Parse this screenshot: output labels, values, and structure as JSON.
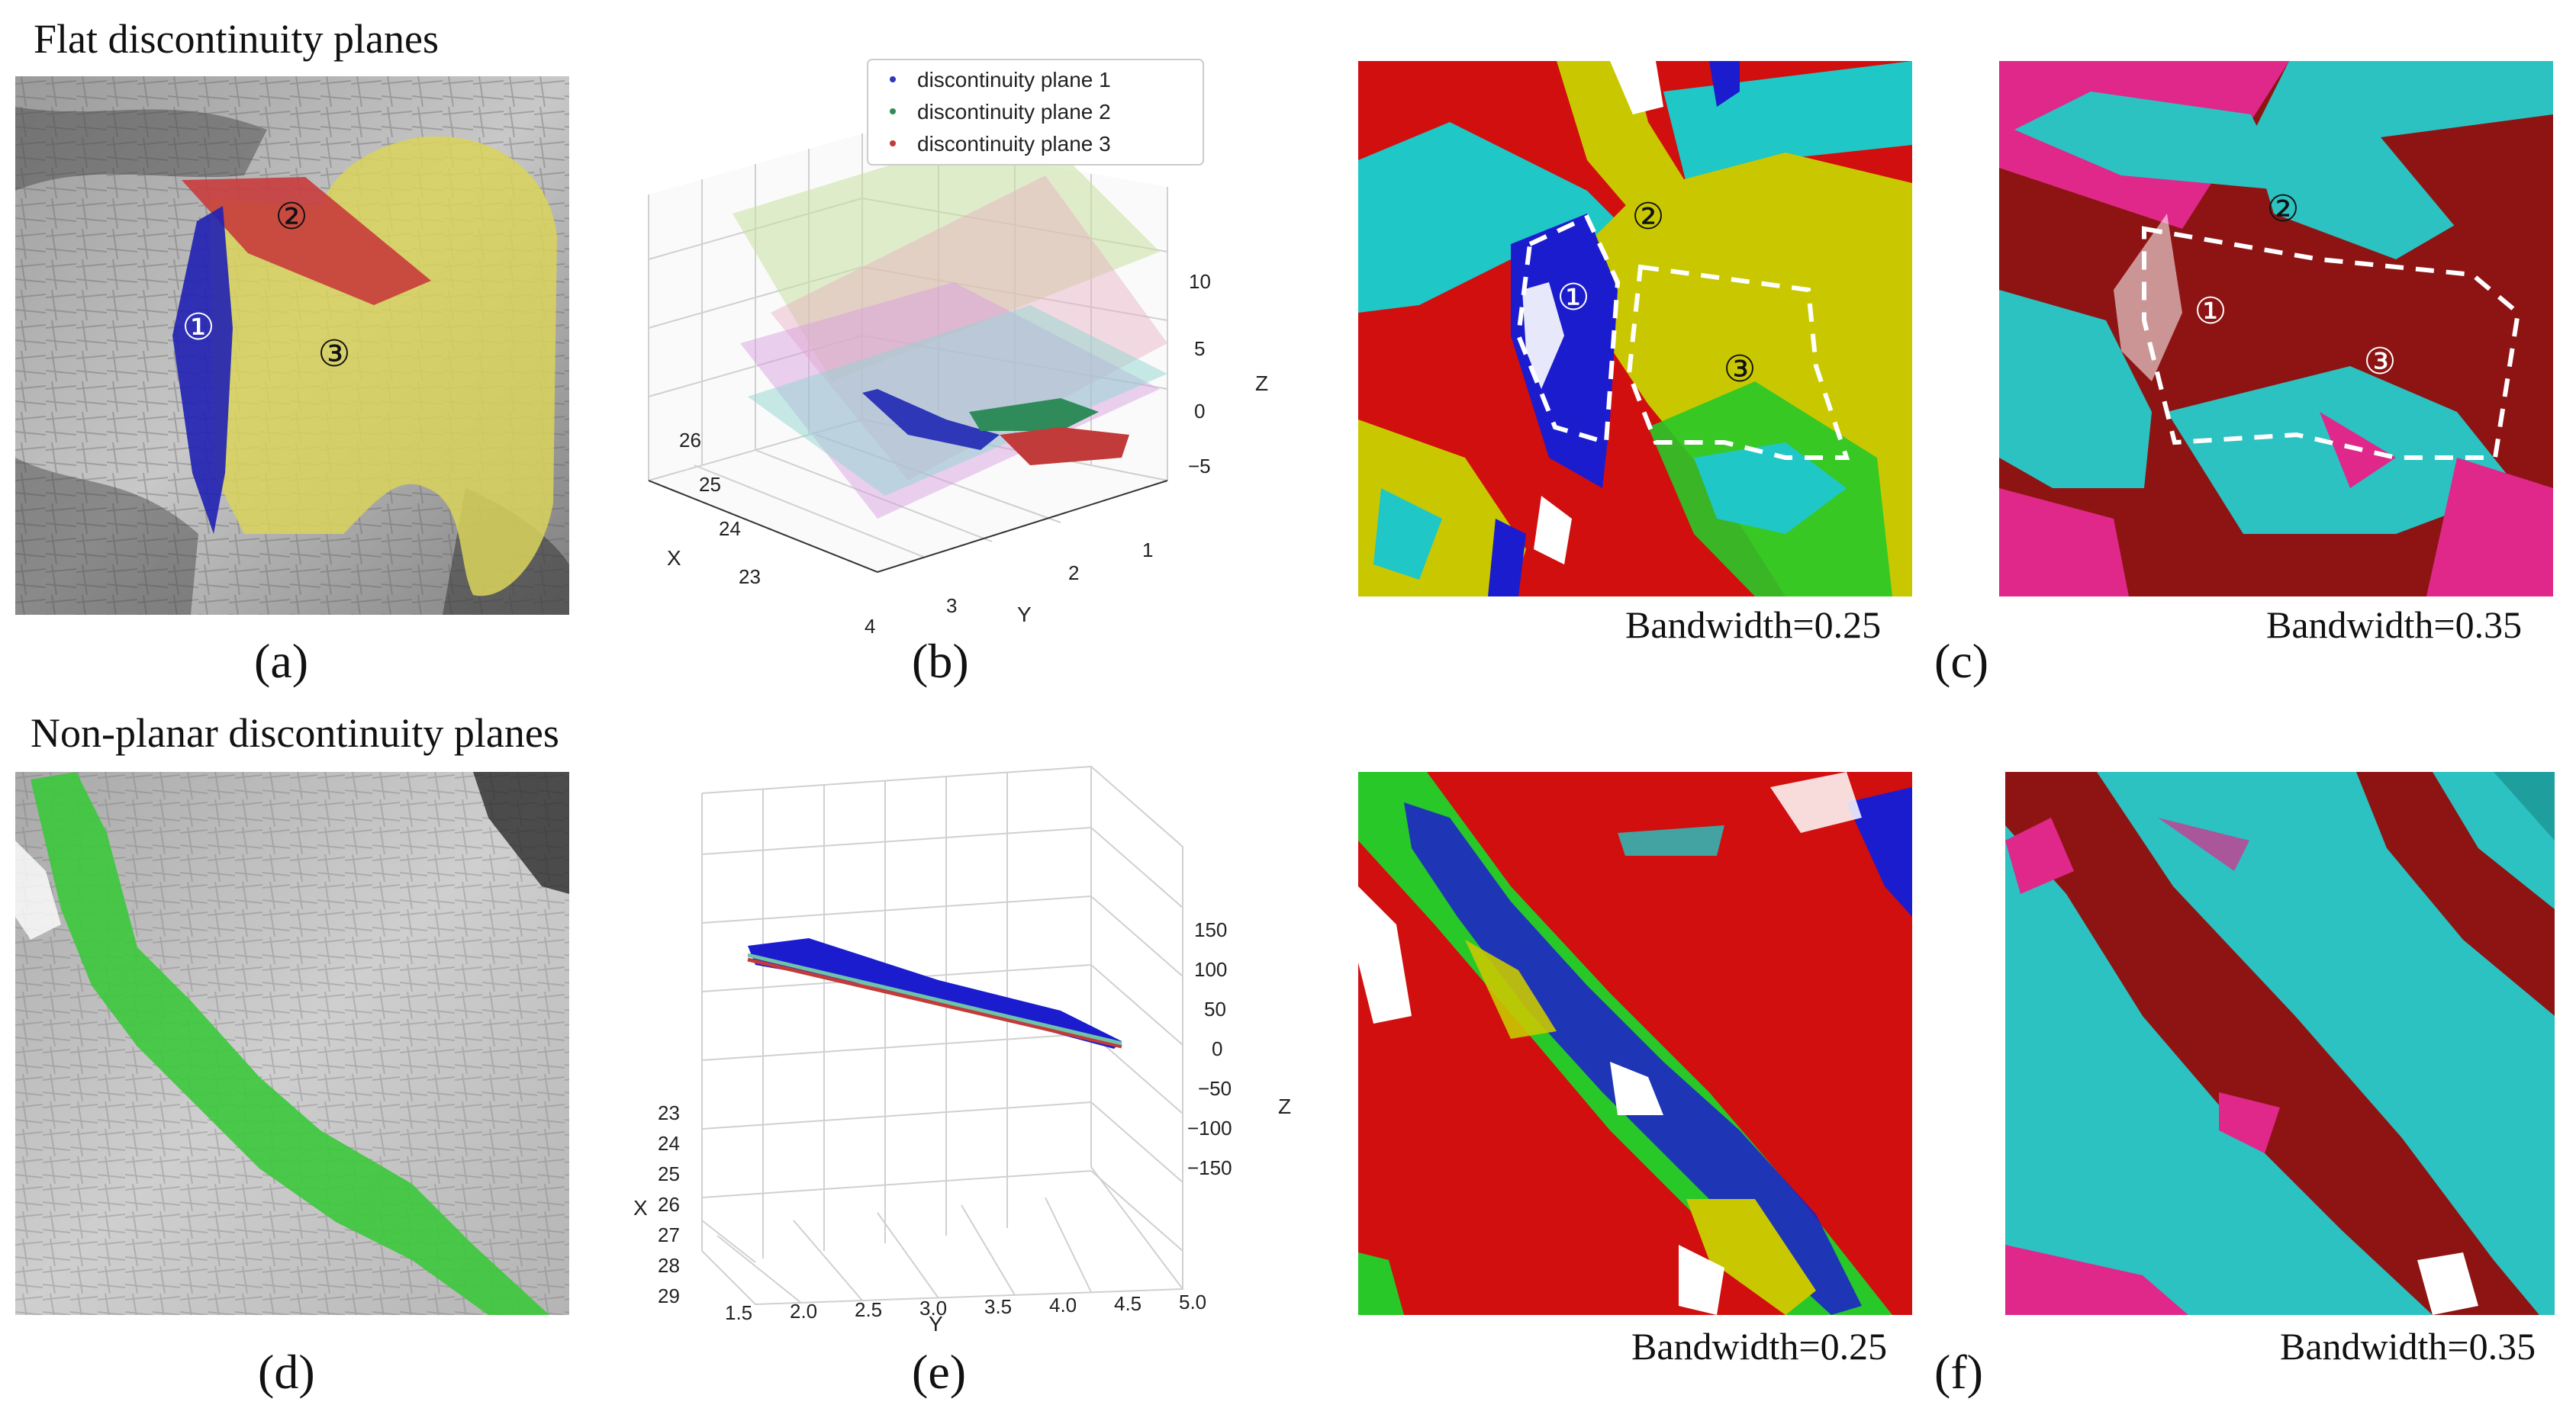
{
  "headings": {
    "flat": "Flat discontinuity planes",
    "nonplanar": "Non-planar discontinuity planes"
  },
  "panel_labels": {
    "a": "(a)",
    "b": "(b)",
    "c": "(c)",
    "d": "(d)",
    "e": "(e)",
    "f": "(f)"
  },
  "bandwidth_labels": {
    "c_left": "Bandwidth=0.25",
    "c_right": "Bandwidth=0.35",
    "f_left": "Bandwidth=0.25",
    "f_right": "Bandwidth=0.35"
  },
  "plane_markers": {
    "p1": "①",
    "p2": "②",
    "p3": "③"
  },
  "colors": {
    "yellow_plane": "#d9d35a",
    "red_plane": "#c83c3c",
    "blue_plane": "#2020b4",
    "green_plane": "#3cc83c",
    "cluster_red": "#d10f0f",
    "cluster_yellow": "#c9c800",
    "cluster_cyan": "#1fc7c7",
    "cluster_blue": "#1c1ccf",
    "cluster_green": "#28c828",
    "bw35_darkred": "#8e1414",
    "bw35_cyan": "#2cc2c2",
    "bw35_magenta": "#e0288a"
  },
  "chart_data": [
    {
      "type": "scatter",
      "panel": "(b)",
      "projection": "3d",
      "legend_position": "top-right",
      "series": [
        {
          "name": "discontinuity plane 1",
          "color": "#2e37b8"
        },
        {
          "name": "discontinuity plane 2",
          "color": "#2f8c5a"
        },
        {
          "name": "discontinuity plane 3",
          "color": "#c23b3b"
        }
      ],
      "xlabel": "X",
      "ylabel": "Y",
      "zlabel": "Z",
      "x_ticks": [
        "23",
        "24",
        "25",
        "26"
      ],
      "y_ticks": [
        "1",
        "2",
        "3",
        "4"
      ],
      "z_ticks": [
        "10",
        "5",
        "0",
        "−5"
      ],
      "grid": true
    },
    {
      "type": "scatter",
      "panel": "(e)",
      "projection": "3d",
      "xlabel": "X",
      "ylabel": "Y",
      "zlabel": "Z",
      "x_ticks": [
        "23",
        "24",
        "25",
        "26",
        "27",
        "28",
        "29"
      ],
      "y_ticks": [
        "1.5",
        "2.0",
        "2.5",
        "3.0",
        "3.5",
        "4.0",
        "4.5",
        "5.0"
      ],
      "z_ticks": [
        "150",
        "100",
        "50",
        "0",
        "−50",
        "−100",
        "−150"
      ],
      "grid": true
    }
  ]
}
